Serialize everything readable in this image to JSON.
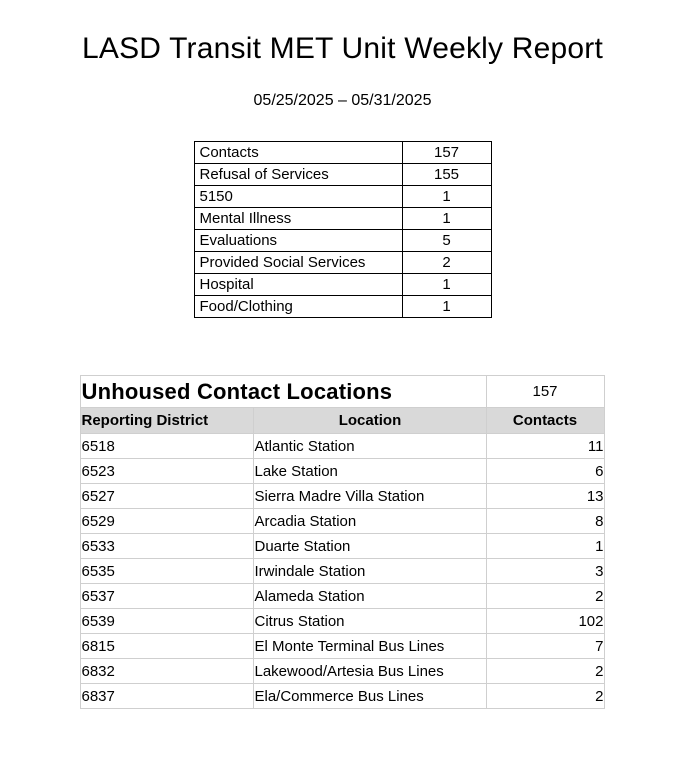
{
  "page": {
    "title": "LASD Transit MET Unit Weekly Report",
    "date_range": "05/25/2025 – 05/31/2025"
  },
  "summary_table": {
    "rows": [
      {
        "label": "Contacts",
        "value": "157"
      },
      {
        "label": "Refusal of Services",
        "value": "155"
      },
      {
        "label": "5150",
        "value": "1"
      },
      {
        "label": "Mental Illness",
        "value": "1"
      },
      {
        "label": "Evaluations",
        "value": "5"
      },
      {
        "label": "Provided Social Services",
        "value": "2"
      },
      {
        "label": "Hospital",
        "value": "1"
      },
      {
        "label": "Food/Clothing",
        "value": "1"
      }
    ]
  },
  "locations_table": {
    "title": "Unhoused Contact Locations",
    "total": "157",
    "columns": [
      "Reporting District",
      "Location",
      "Contacts"
    ],
    "rows": [
      {
        "district": "6518",
        "location": "Atlantic Station",
        "contacts": "11"
      },
      {
        "district": "6523",
        "location": "Lake Station",
        "contacts": "6"
      },
      {
        "district": "6527",
        "location": "Sierra Madre Villa Station",
        "contacts": "13"
      },
      {
        "district": "6529",
        "location": "Arcadia Station",
        "contacts": "8"
      },
      {
        "district": "6533",
        "location": "Duarte Station",
        "contacts": "1"
      },
      {
        "district": "6535",
        "location": "Irwindale Station",
        "contacts": "3"
      },
      {
        "district": "6537",
        "location": "Alameda Station",
        "contacts": "2"
      },
      {
        "district": "6539",
        "location": "Citrus Station",
        "contacts": "102"
      },
      {
        "district": "6815",
        "location": "El Monte Terminal Bus Lines",
        "contacts": "7"
      },
      {
        "district": "6832",
        "location": "Lakewood/Artesia Bus Lines",
        "contacts": "2"
      },
      {
        "district": "6837",
        "location": "Ela/Commerce Bus Lines",
        "contacts": "2"
      }
    ]
  },
  "colors": {
    "header_fill": "#d9d9d9",
    "grid_line": "#cfcfcf",
    "summary_border": "#000000",
    "text": "#000000"
  }
}
